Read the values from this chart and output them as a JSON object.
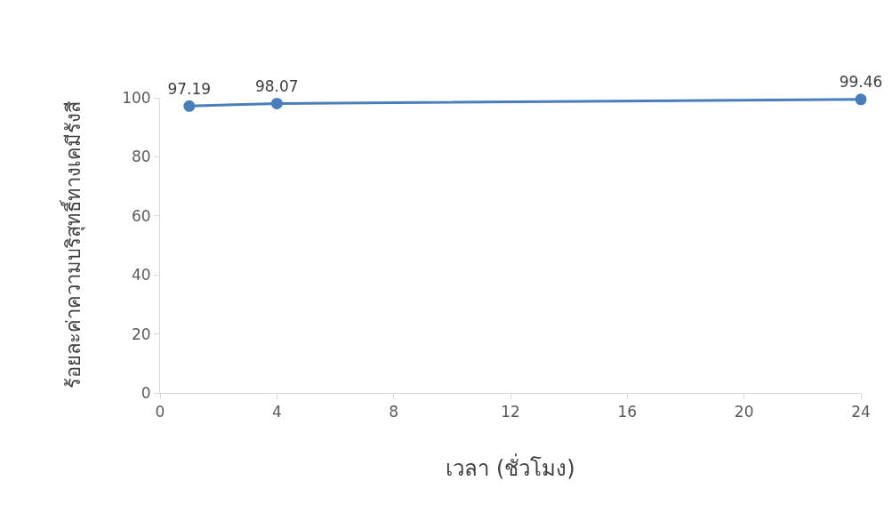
{
  "chart_data": {
    "type": "line",
    "xlabel": "เวลา (ชั่วโมง)",
    "ylabel": "ร้อยละค่าความบริสุทธิ์ทางเคมีรังสี",
    "x": [
      1,
      4,
      24
    ],
    "series": [
      {
        "color": "#4a7ebb",
        "values": [
          97.19,
          98.07,
          99.46
        ]
      }
    ],
    "xlim": [
      0,
      24
    ],
    "xticks": [
      0,
      4,
      8,
      12,
      16,
      20,
      24
    ],
    "ylim": [
      0,
      100
    ],
    "yticks": [
      0,
      20,
      40,
      60,
      80,
      100
    ],
    "grid": false,
    "legend": false,
    "marker": "circle",
    "line_style": "solid",
    "data_labels": true
  }
}
